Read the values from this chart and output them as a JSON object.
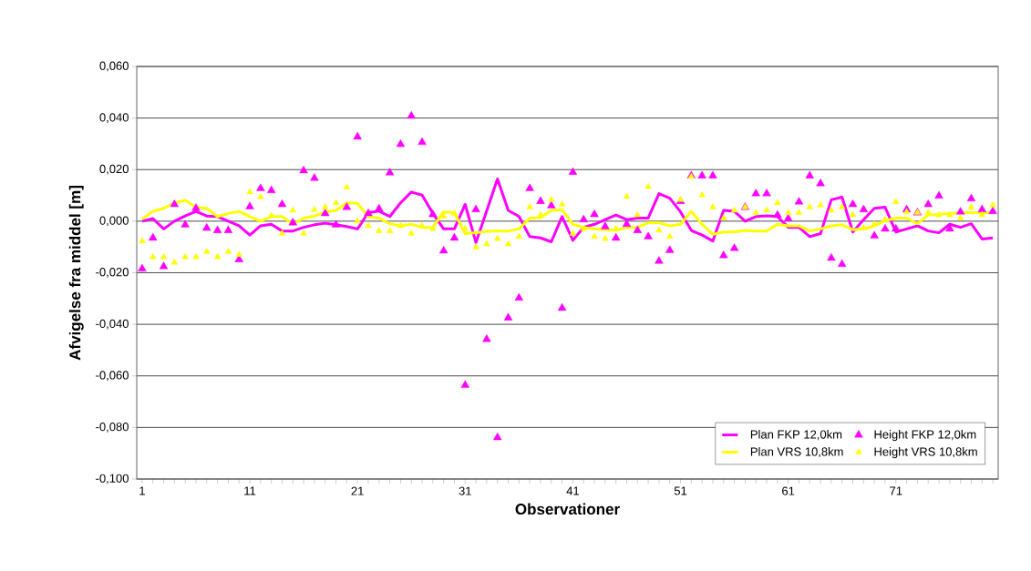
{
  "chart_data": {
    "type": "line",
    "xlabel": "Observationer",
    "ylabel": "Afvigelse fra middel [m]",
    "categories": [
      "1",
      null,
      null,
      null,
      null,
      null,
      null,
      null,
      null,
      null,
      "11",
      null,
      null,
      null,
      null,
      null,
      null,
      null,
      null,
      null,
      "21",
      null,
      null,
      null,
      null,
      null,
      null,
      null,
      null,
      null,
      "31",
      null,
      null,
      null,
      null,
      null,
      null,
      null,
      null,
      null,
      "41",
      null,
      null,
      null,
      null,
      null,
      null,
      null,
      null,
      null,
      "51",
      null,
      null,
      null,
      null,
      null,
      null,
      null,
      null,
      null,
      "61",
      null,
      null,
      null,
      null,
      null,
      null,
      null,
      null,
      null,
      "71",
      null,
      null,
      null,
      null,
      null,
      null,
      null,
      null,
      null
    ],
    "ylim": [
      -0.1,
      0.06
    ],
    "yticks": [
      {
        "value": -0.1,
        "label": "-0,100"
      },
      {
        "value": -0.08,
        "label": "-0,080"
      },
      {
        "value": -0.06,
        "label": "-0,060"
      },
      {
        "value": -0.04,
        "label": "-0,040"
      },
      {
        "value": -0.02,
        "label": "-0,020"
      },
      {
        "value": 0,
        "label": "0,000"
      },
      {
        "value": 0.02,
        "label": "0,020"
      },
      {
        "value": 0.04,
        "label": "0,040"
      },
      {
        "value": 0.06,
        "label": "0,060"
      }
    ],
    "grid": "y",
    "legend": "bottom right",
    "series": [
      {
        "name": "Plan FKP 12,0km",
        "marker": "none",
        "color": "#ff00ff",
        "values": [
          0,
          0.001,
          -0.003,
          0,
          0.002,
          0.0038,
          0.002,
          0.0018,
          0,
          -0.0018,
          -0.0054,
          -0.0018,
          -0.0012,
          -0.0038,
          -0.0038,
          -0.0024,
          -0.0014,
          -0.0008,
          -0.0014,
          -0.0021,
          -0.003,
          0.0033,
          0.0039,
          0.0018,
          0.0071,
          0.0113,
          0.0101,
          0.003,
          -0.003,
          -0.003,
          0.0065,
          -0.0083,
          0.004,
          0.0164,
          0.0042,
          0.0018,
          -0.006,
          -0.0065,
          -0.008,
          0.0018,
          -0.0074,
          -0.0024,
          -0.0012,
          0.0006,
          0.0024,
          0.0006,
          0.0012,
          0.0012,
          0.0107,
          0.0089,
          0.0036,
          -0.0036,
          -0.0054,
          -0.0077,
          0.0042,
          0.0038,
          0,
          0.0018,
          0.0021,
          0.0018,
          -0.0024,
          -0.0024,
          -0.006,
          -0.0048,
          0.0083,
          0.0093,
          -0.0042,
          0.0006,
          0.005,
          0.0054,
          -0.0042,
          -0.003,
          -0.0018,
          -0.0038,
          -0.0045,
          -0.0012,
          -0.0024,
          -0.001,
          -0.0069,
          -0.0065
        ]
      },
      {
        "name": "Height FKP 12,0km",
        "type": "scatter",
        "marker": "triangle",
        "color": "#ff00ff",
        "values": [
          -0.0185,
          -0.0065,
          -0.0176,
          0.0065,
          -0.0014,
          0.005,
          -0.0027,
          -0.0036,
          -0.0036,
          -0.0149,
          0.0056,
          0.0127,
          0.0119,
          0.0065,
          -0.0006,
          0.0196,
          0.0167,
          0.003,
          -0.0014,
          0.0054,
          0.0327,
          0.003,
          0.0048,
          0.0188,
          0.0298,
          0.0408,
          0.0306,
          0.0026,
          -0.0115,
          -0.0065,
          -0.0636,
          0.0045,
          -0.0458,
          -0.0839,
          -0.0375,
          -0.0298,
          0.0127,
          0.0077,
          0.006,
          -0.0337,
          0.019,
          0.0006,
          0.0026,
          -0.0021,
          -0.0065,
          -0.0012,
          -0.0036,
          -0.006,
          -0.0155,
          -0.0113,
          0.0077,
          0.0176,
          0.0176,
          0.0176,
          -0.0133,
          -0.0105,
          0.0054,
          0.0107,
          0.0107,
          0.0024,
          0.001,
          0.0075,
          0.0176,
          0.0146,
          -0.0143,
          -0.0167,
          0.0065,
          0.0045,
          -0.0057,
          -0.003,
          -0.003,
          0.0045,
          0.0033,
          0.0065,
          0.0098,
          -0.003,
          0.0036,
          0.0087,
          0.0045,
          0.0038
        ]
      },
      {
        "name": "Plan VRS 10,8km",
        "marker": "none",
        "color": "#ffff00",
        "values": [
          0.0008,
          0.0038,
          0.005,
          0.0071,
          0.0081,
          0.0054,
          0.005,
          0.0018,
          0.003,
          0.0038,
          0.0018,
          0,
          0.0018,
          0.0018,
          -0.0012,
          0.0012,
          0.002,
          0.0036,
          0.0042,
          0.0071,
          0.0069,
          0.0018,
          0.0012,
          -0.001,
          -0.0018,
          -0.0012,
          -0.0024,
          -0.0024,
          0.0036,
          0.0033,
          -0.0048,
          -0.0045,
          -0.0039,
          -0.0038,
          -0.0038,
          -0.003,
          0.0012,
          0.0014,
          0.0042,
          0.0045,
          -0.0012,
          -0.0024,
          -0.003,
          -0.0033,
          -0.0036,
          -0.0024,
          -0.0024,
          -0.0006,
          -0.0006,
          -0.0018,
          -0.0012,
          0.0038,
          -0.0012,
          -0.0051,
          -0.0042,
          -0.0042,
          -0.0036,
          -0.0038,
          -0.0038,
          -0.0012,
          -0.0018,
          -0.0018,
          -0.0038,
          -0.003,
          -0.0018,
          -0.0014,
          -0.0033,
          -0.003,
          -0.0018,
          0.0002,
          0.0012,
          0.0012,
          -0.001,
          0.0024,
          0.0026,
          0.003,
          0.0033,
          0.0033,
          0.0033,
          0.0033
        ]
      },
      {
        "name": "Height VRS 10,8km",
        "type": "scatter",
        "marker": "triangle",
        "color": "#ffff00",
        "values": [
          -0.0077,
          -0.0139,
          -0.0139,
          -0.016,
          -0.0139,
          -0.0139,
          -0.0119,
          -0.0139,
          -0.0119,
          -0.013,
          0.0113,
          0.0093,
          0.0021,
          -0.0048,
          0.0042,
          -0.0048,
          0.0045,
          0.0054,
          0.0071,
          0.0131,
          0,
          -0.0018,
          -0.0038,
          -0.0038,
          -0.0018,
          -0.0048,
          -0.0018,
          -0.003,
          0.0018,
          0.003,
          -0.003,
          -0.0101,
          -0.0089,
          -0.0068,
          -0.0089,
          -0.006,
          0.0054,
          0.0024,
          0.0083,
          0.0065,
          -0.0048,
          -0.003,
          -0.006,
          -0.0068,
          -0.003,
          0.0095,
          0.0024,
          0.0134,
          -0.0036,
          -0.006,
          0.0083,
          0.0173,
          0.0101,
          0.0054,
          0.0012,
          0.0042,
          0.0054,
          0.0032,
          0.0042,
          0.0071,
          0.0032,
          0.0032,
          0.0054,
          0.0062,
          0.0042,
          0.0054,
          0.0024,
          -0.0026,
          -0.0012,
          0.0006,
          0.0075,
          0.0036,
          0.0033,
          0.0033,
          0.0024,
          0.0024,
          0.0012,
          0.0054,
          0.0024,
          0.0062
        ]
      }
    ]
  }
}
